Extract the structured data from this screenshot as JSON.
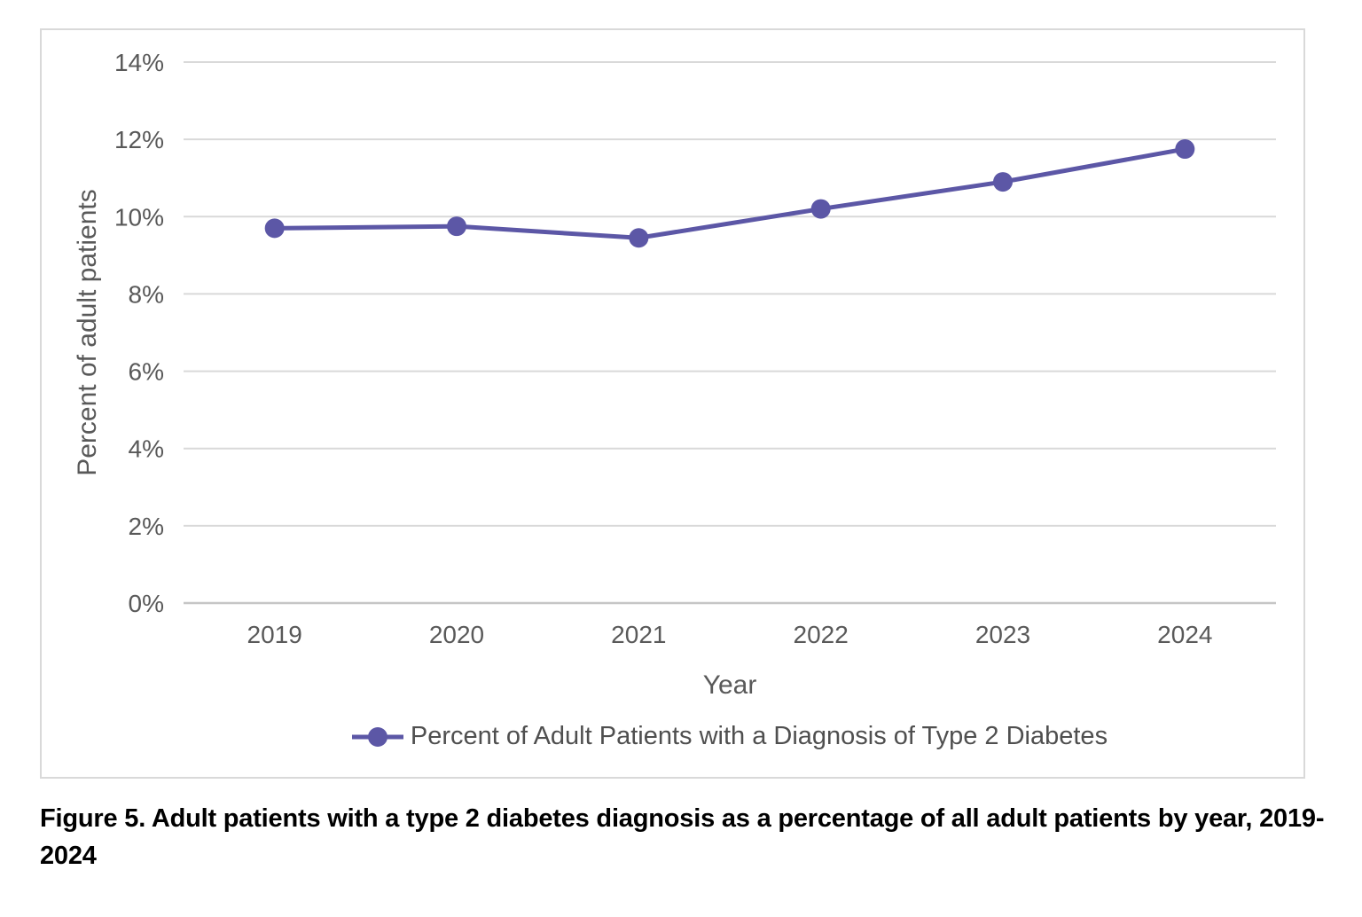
{
  "chart_data": {
    "type": "line",
    "x": [
      "2019",
      "2020",
      "2021",
      "2022",
      "2023",
      "2024"
    ],
    "series": [
      {
        "name": "Percent of Adult Patients with a Diagnosis of Type 2 Diabetes",
        "values": [
          9.7,
          9.75,
          9.45,
          10.2,
          10.9,
          11.75
        ]
      }
    ],
    "title": "",
    "xlabel": "Year",
    "ylabel": "Percent of adult patients",
    "ylim": [
      0,
      14
    ],
    "ytick_step": 2,
    "ytick_suffix": "%",
    "grid": true,
    "legend_position": "bottom",
    "marker": "circle",
    "colors": {
      "line": "#5C57A6",
      "gridline": "#D9D9D9",
      "axis_line": "#C6C6C6",
      "tick_text": "#595959",
      "frame_border": "#D9D9D9"
    }
  },
  "caption": "Figure 5. Adult patients with a type 2 diabetes diagnosis as a percentage of all adult patients by year, 2019-2024"
}
